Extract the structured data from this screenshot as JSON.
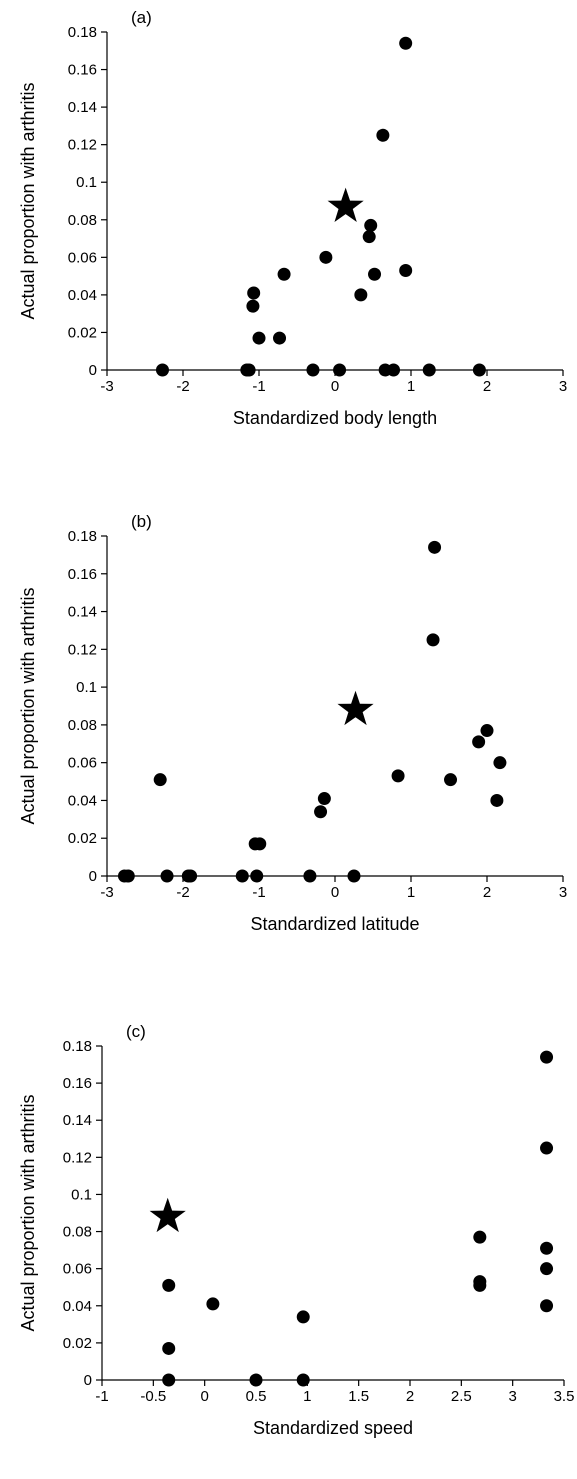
{
  "chart_data": [
    {
      "type": "scatter",
      "panel_label": "(a)",
      "xlabel": "Standardized body length",
      "ylabel": "Actual proportion with arthritis",
      "xlim": [
        -3,
        3
      ],
      "ylim": [
        0,
        0.18
      ],
      "xticks": [
        -3,
        -2,
        -1,
        0,
        1,
        2,
        3
      ],
      "xtick_labels": [
        "-3",
        "-2",
        "-1",
        "0",
        "1",
        "2",
        "3"
      ],
      "yticks": [
        0,
        0.02,
        0.04,
        0.06,
        0.08,
        0.1,
        0.12,
        0.14,
        0.16,
        0.18
      ],
      "ytick_labels": [
        "0",
        "0.02",
        "0.04",
        "0.06",
        "0.08",
        "0.1",
        "0.12",
        "0.14",
        "0.16",
        "0.18"
      ],
      "grid": false,
      "points": [
        {
          "x": -2.27,
          "y": 0
        },
        {
          "x": -1.16,
          "y": 0
        },
        {
          "x": -1.13,
          "y": 0
        },
        {
          "x": -0.29,
          "y": 0
        },
        {
          "x": 0.06,
          "y": 0
        },
        {
          "x": 0.66,
          "y": 0
        },
        {
          "x": 0.77,
          "y": 0
        },
        {
          "x": 1.24,
          "y": 0
        },
        {
          "x": 1.9,
          "y": 0
        },
        {
          "x": -1.08,
          "y": 0.034
        },
        {
          "x": -1.07,
          "y": 0.041
        },
        {
          "x": -1.0,
          "y": 0.017
        },
        {
          "x": -0.73,
          "y": 0.017
        },
        {
          "x": -0.67,
          "y": 0.051
        },
        {
          "x": -0.12,
          "y": 0.06
        },
        {
          "x": 0.34,
          "y": 0.04
        },
        {
          "x": 0.45,
          "y": 0.071
        },
        {
          "x": 0.47,
          "y": 0.077
        },
        {
          "x": 0.52,
          "y": 0.051
        },
        {
          "x": 0.63,
          "y": 0.125
        },
        {
          "x": 0.93,
          "y": 0.053
        },
        {
          "x": 0.93,
          "y": 0.174
        }
      ],
      "star": {
        "x": 0.14,
        "y": 0.087
      }
    },
    {
      "type": "scatter",
      "panel_label": "(b)",
      "xlabel": "Standardized latitude",
      "ylabel": "Actual proportion with arthritis",
      "xlim": [
        -3,
        3
      ],
      "ylim": [
        0,
        0.18
      ],
      "xticks": [
        -3,
        -2,
        -1,
        0,
        1,
        2,
        3
      ],
      "xtick_labels": [
        "-3",
        "-2",
        "-1",
        "0",
        "1",
        "2",
        "3"
      ],
      "yticks": [
        0,
        0.02,
        0.04,
        0.06,
        0.08,
        0.1,
        0.12,
        0.14,
        0.16,
        0.18
      ],
      "ytick_labels": [
        "0",
        "0.02",
        "0.04",
        "0.06",
        "0.08",
        "0.1",
        "0.12",
        "0.14",
        "0.16",
        "0.18"
      ],
      "grid": false,
      "points": [
        {
          "x": -2.77,
          "y": 0
        },
        {
          "x": -2.72,
          "y": 0
        },
        {
          "x": -2.21,
          "y": 0
        },
        {
          "x": -1.93,
          "y": 0
        },
        {
          "x": -1.9,
          "y": 0
        },
        {
          "x": -1.22,
          "y": 0
        },
        {
          "x": -1.03,
          "y": 0
        },
        {
          "x": -0.33,
          "y": 0
        },
        {
          "x": 0.25,
          "y": 0
        },
        {
          "x": -2.3,
          "y": 0.051
        },
        {
          "x": -1.05,
          "y": 0.017
        },
        {
          "x": -0.99,
          "y": 0.017
        },
        {
          "x": -0.19,
          "y": 0.034
        },
        {
          "x": -0.14,
          "y": 0.041
        },
        {
          "x": 0.83,
          "y": 0.053
        },
        {
          "x": 1.29,
          "y": 0.125
        },
        {
          "x": 1.31,
          "y": 0.174
        },
        {
          "x": 1.52,
          "y": 0.051
        },
        {
          "x": 1.89,
          "y": 0.071
        },
        {
          "x": 2.0,
          "y": 0.077
        },
        {
          "x": 2.13,
          "y": 0.04
        },
        {
          "x": 2.17,
          "y": 0.06
        }
      ],
      "star": {
        "x": 0.27,
        "y": 0.088
      }
    },
    {
      "type": "scatter",
      "panel_label": "(c)",
      "xlabel": "Standardized speed",
      "ylabel": "Actual proportion with arthritis",
      "xlim": [
        -1,
        3.5
      ],
      "ylim": [
        0,
        0.18
      ],
      "xticks": [
        -1,
        -0.5,
        0,
        0.5,
        1,
        1.5,
        2,
        2.5,
        3,
        3.5
      ],
      "xtick_labels": [
        "-1",
        "-0.5",
        "0",
        "0.5",
        "1",
        "1.5",
        "2",
        "2.5",
        "3",
        "3.5"
      ],
      "yticks": [
        0,
        0.02,
        0.04,
        0.06,
        0.08,
        0.1,
        0.12,
        0.14,
        0.16,
        0.18
      ],
      "ytick_labels": [
        "0",
        "0.02",
        "0.04",
        "0.06",
        "0.08",
        "0.1",
        "0.12",
        "0.14",
        "0.16",
        "0.18"
      ],
      "grid": false,
      "points": [
        {
          "x": -0.35,
          "y": 0
        },
        {
          "x": 0.5,
          "y": 0
        },
        {
          "x": 0.96,
          "y": 0
        },
        {
          "x": -0.35,
          "y": 0.017
        },
        {
          "x": -0.35,
          "y": 0.051
        },
        {
          "x": 0.08,
          "y": 0.041
        },
        {
          "x": 0.96,
          "y": 0.034
        },
        {
          "x": 2.68,
          "y": 0.051
        },
        {
          "x": 2.68,
          "y": 0.053
        },
        {
          "x": 2.68,
          "y": 0.077
        },
        {
          "x": 3.33,
          "y": 0.04
        },
        {
          "x": 3.33,
          "y": 0.06
        },
        {
          "x": 3.33,
          "y": 0.071
        },
        {
          "x": 3.33,
          "y": 0.125
        },
        {
          "x": 3.33,
          "y": 0.174
        }
      ],
      "star": {
        "x": -0.36,
        "y": 0.088
      }
    }
  ]
}
